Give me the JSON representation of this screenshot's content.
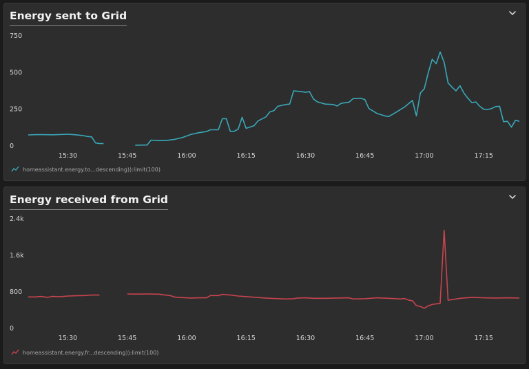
{
  "colors": {
    "sent": "#39a8b8",
    "received": "#c9444f"
  },
  "panels": [
    {
      "title": "Energy sent to Grid",
      "legend": "homeassistant.energy.to...descending)):limit(100)",
      "collapse_icon": "chevron-down-icon"
    },
    {
      "title": "Energy received from Grid",
      "legend": "homeassistant.energy.fr...descending)):limit(100)",
      "collapse_icon": "chevron-down-icon"
    }
  ],
  "chart_data": [
    {
      "type": "line",
      "title": "Energy sent to Grid",
      "xlim": [
        "15:20",
        "17:24"
      ],
      "ylim": [
        0,
        750
      ],
      "x_ticks": [
        "15:30",
        "15:45",
        "16:00",
        "16:15",
        "16:30",
        "16:45",
        "17:00",
        "17:15"
      ],
      "y_ticks": [
        "0",
        "250",
        "500",
        "750"
      ],
      "series": [
        {
          "name": "homeassistant.energy.to...descending)):limit(100)",
          "color": "#39a8b8",
          "segments": [
            [
              [
                "15:20",
                75
              ],
              [
                "15:22",
                77
              ],
              [
                "15:24",
                77
              ],
              [
                "15:26",
                76
              ],
              [
                "15:28",
                78
              ],
              [
                "15:30",
                80
              ],
              [
                "15:32",
                76
              ],
              [
                "15:34",
                70
              ],
              [
                "15:35",
                64
              ],
              [
                "15:36",
                62
              ],
              [
                "15:37",
                20
              ],
              [
                "15:38",
                17
              ],
              [
                "15:39",
                16
              ]
            ],
            [
              [
                "15:47",
                5
              ],
              [
                "15:49",
                6
              ],
              [
                "15:50",
                6
              ],
              [
                "15:51",
                40
              ],
              [
                "15:53",
                36
              ],
              [
                "15:55",
                38
              ],
              [
                "15:57",
                45
              ],
              [
                "15:59",
                58
              ],
              [
                "16:01",
                78
              ],
              [
                "16:03",
                90
              ],
              [
                "16:05",
                98
              ],
              [
                "16:06",
                110
              ],
              [
                "16:08",
                110
              ],
              [
                "16:09",
                185
              ],
              [
                "16:10",
                186
              ],
              [
                "16:11",
                100
              ],
              [
                "16:12",
                100
              ],
              [
                "16:13",
                115
              ],
              [
                "16:14",
                195
              ],
              [
                "16:15",
                120
              ],
              [
                "16:17",
                138
              ],
              [
                "16:18",
                170
              ],
              [
                "16:20",
                198
              ],
              [
                "16:21",
                232
              ],
              [
                "16:22",
                240
              ],
              [
                "16:23",
                270
              ],
              [
                "16:25",
                282
              ],
              [
                "16:26",
                285
              ],
              [
                "16:27",
                375
              ],
              [
                "16:29",
                370
              ],
              [
                "16:30",
                365
              ],
              [
                "16:31",
                370
              ],
              [
                "16:32",
                320
              ],
              [
                "16:33",
                300
              ],
              [
                "16:35",
                285
              ],
              [
                "16:37",
                282
              ],
              [
                "16:38",
                272
              ],
              [
                "16:39",
                290
              ],
              [
                "16:41",
                298
              ],
              [
                "16:42",
                322
              ],
              [
                "16:44",
                325
              ],
              [
                "16:45",
                315
              ],
              [
                "16:46",
                255
              ],
              [
                "16:48",
                222
              ],
              [
                "16:50",
                205
              ],
              [
                "16:51",
                200
              ],
              [
                "16:52",
                215
              ],
              [
                "16:54",
                248
              ],
              [
                "16:55",
                265
              ],
              [
                "16:57",
                310
              ],
              [
                "16:58",
                205
              ],
              [
                "16:59",
                360
              ],
              [
                "17:00",
                390
              ],
              [
                "17:01",
                500
              ],
              [
                "17:02",
                590
              ],
              [
                "17:03",
                560
              ],
              [
                "17:04",
                640
              ],
              [
                "17:05",
                570
              ],
              [
                "17:06",
                430
              ],
              [
                "17:07",
                400
              ],
              [
                "17:08",
                375
              ],
              [
                "17:09",
                410
              ],
              [
                "17:10",
                360
              ],
              [
                "17:11",
                325
              ],
              [
                "17:12",
                295
              ],
              [
                "17:13",
                300
              ],
              [
                "17:14",
                270
              ],
              [
                "17:15",
                250
              ],
              [
                "17:16",
                248
              ],
              [
                "17:17",
                255
              ],
              [
                "17:18",
                268
              ],
              [
                "17:19",
                270
              ],
              [
                "17:20",
                165
              ],
              [
                "17:21",
                168
              ],
              [
                "17:22",
                128
              ],
              [
                "17:23",
                175
              ],
              [
                "17:24",
                168
              ]
            ]
          ]
        }
      ]
    },
    {
      "type": "line",
      "title": "Energy received from Grid",
      "xlim": [
        "15:20",
        "17:24"
      ],
      "ylim": [
        0,
        2400
      ],
      "x_ticks": [
        "15:30",
        "15:45",
        "16:00",
        "16:15",
        "16:30",
        "16:45",
        "17:00",
        "17:15"
      ],
      "y_ticks": [
        "0",
        "800",
        "1.6k",
        "2.4k"
      ],
      "series": [
        {
          "name": "homeassistant.energy.fr...descending)):limit(100)",
          "color": "#c9444f",
          "segments": [
            [
              [
                "15:20",
                690
              ],
              [
                "15:22",
                690
              ],
              [
                "15:23",
                700
              ],
              [
                "15:25",
                680
              ],
              [
                "15:26",
                700
              ],
              [
                "15:28",
                695
              ],
              [
                "15:30",
                710
              ],
              [
                "15:32",
                715
              ],
              [
                "15:34",
                720
              ],
              [
                "15:36",
                730
              ],
              [
                "15:38",
                730
              ]
            ],
            [
              [
                "15:45",
                755
              ],
              [
                "15:47",
                752
              ],
              [
                "15:50",
                755
              ],
              [
                "15:53",
                750
              ],
              [
                "15:56",
                715
              ],
              [
                "15:57",
                685
              ],
              [
                "15:59",
                675
              ],
              [
                "16:01",
                665
              ],
              [
                "16:03",
                670
              ],
              [
                "16:05",
                670
              ],
              [
                "16:06",
                720
              ],
              [
                "16:08",
                720
              ],
              [
                "16:09",
                745
              ],
              [
                "16:11",
                730
              ],
              [
                "16:13",
                710
              ],
              [
                "16:16",
                690
              ],
              [
                "16:19",
                670
              ],
              [
                "16:22",
                655
              ],
              [
                "16:25",
                645
              ],
              [
                "16:27",
                650
              ],
              [
                "16:28",
                665
              ],
              [
                "16:30",
                670
              ],
              [
                "16:32",
                660
              ],
              [
                "16:35",
                660
              ],
              [
                "16:38",
                665
              ],
              [
                "16:41",
                670
              ],
              [
                "16:42",
                645
              ],
              [
                "16:45",
                650
              ],
              [
                "16:48",
                670
              ],
              [
                "16:51",
                660
              ],
              [
                "16:54",
                645
              ],
              [
                "16:55",
                655
              ],
              [
                "16:56",
                620
              ],
              [
                "16:57",
                605
              ],
              [
                "16:58",
                500
              ],
              [
                "16:59",
                480
              ],
              [
                "17:00",
                440
              ],
              [
                "17:01",
                495
              ],
              [
                "17:02",
                525
              ],
              [
                "17:04",
                550
              ],
              [
                "17:05",
                2150
              ],
              [
                "17:06",
                620
              ],
              [
                "17:07",
                630
              ],
              [
                "17:09",
                660
              ],
              [
                "17:12",
                680
              ],
              [
                "17:15",
                670
              ],
              [
                "17:18",
                665
              ],
              [
                "17:21",
                670
              ],
              [
                "17:24",
                665
              ]
            ]
          ]
        }
      ]
    }
  ]
}
